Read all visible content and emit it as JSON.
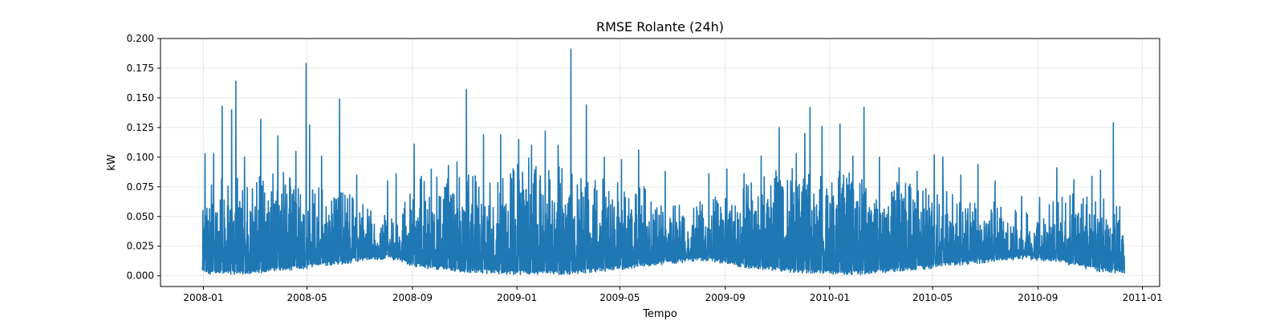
{
  "chart_data": {
    "type": "line",
    "title": "RMSE Rolante (24h)",
    "xlabel": "Tempo",
    "ylabel": "kW",
    "xlim": [
      "2007-11-12",
      "2011-01-21"
    ],
    "ylim": [
      -0.009,
      0.2
    ],
    "grid": true,
    "x_ticks": [
      "2008-01",
      "2008-05",
      "2008-09",
      "2009-01",
      "2009-05",
      "2009-09",
      "2010-01",
      "2010-05",
      "2010-09",
      "2011-01"
    ],
    "y_ticks": [
      "0.000",
      "0.025",
      "0.050",
      "0.075",
      "0.100",
      "0.125",
      "0.150",
      "0.175",
      "0.200"
    ],
    "series": [
      {
        "color": "#1f77b4",
        "x_start": "2007-12-31",
        "x_end": "2010-12-11",
        "envelope": {
          "dates": [
            "2007-12-31",
            "2008-01-15",
            "2008-02-01",
            "2008-02-15",
            "2008-03-01",
            "2008-03-15",
            "2008-04-01",
            "2008-04-15",
            "2008-05-01",
            "2008-05-15",
            "2008-06-01",
            "2008-06-15",
            "2008-07-01",
            "2008-07-15",
            "2008-08-01",
            "2008-08-15",
            "2008-09-01",
            "2008-09-15",
            "2008-10-01",
            "2008-10-15",
            "2008-11-01",
            "2008-11-15",
            "2008-12-01",
            "2008-12-15",
            "2009-01-01",
            "2009-01-15",
            "2009-02-01",
            "2009-02-15",
            "2009-03-01",
            "2009-03-15",
            "2009-04-01",
            "2009-04-15",
            "2009-05-01",
            "2009-05-15",
            "2009-06-01",
            "2009-06-15",
            "2009-07-01",
            "2009-07-15",
            "2009-08-01",
            "2009-08-15",
            "2009-09-01",
            "2009-09-15",
            "2009-10-01",
            "2009-10-15",
            "2009-11-01",
            "2009-11-15",
            "2009-12-01",
            "2009-12-15",
            "2010-01-01",
            "2010-01-15",
            "2010-02-01",
            "2010-02-15",
            "2010-03-01",
            "2010-03-15",
            "2010-04-01",
            "2010-04-15",
            "2010-05-01",
            "2010-05-15",
            "2010-06-01",
            "2010-06-15",
            "2010-07-01",
            "2010-07-15",
            "2010-08-01",
            "2010-08-15",
            "2010-09-01",
            "2010-09-15",
            "2010-10-01",
            "2010-10-15",
            "2010-11-01",
            "2010-11-15",
            "2010-12-11"
          ],
          "min": [
            0.002,
            0.001,
            0.001,
            0.001,
            0.002,
            0.003,
            0.004,
            0.005,
            0.006,
            0.008,
            0.009,
            0.01,
            0.012,
            0.013,
            0.014,
            0.012,
            0.008,
            0.006,
            0.005,
            0.004,
            0.003,
            0.002,
            0.002,
            0.001,
            0.001,
            0.001,
            0.001,
            0.001,
            0.001,
            0.002,
            0.003,
            0.004,
            0.005,
            0.006,
            0.008,
            0.009,
            0.01,
            0.011,
            0.012,
            0.012,
            0.01,
            0.008,
            0.006,
            0.005,
            0.004,
            0.003,
            0.002,
            0.002,
            0.001,
            0.001,
            0.001,
            0.001,
            0.002,
            0.003,
            0.004,
            0.005,
            0.006,
            0.008,
            0.009,
            0.01,
            0.011,
            0.012,
            0.013,
            0.014,
            0.013,
            0.012,
            0.01,
            0.008,
            0.005,
            0.003,
            0.002
          ],
          "typical": [
            0.055,
            0.068,
            0.066,
            0.058,
            0.062,
            0.063,
            0.066,
            0.061,
            0.057,
            0.056,
            0.055,
            0.052,
            0.05,
            0.044,
            0.04,
            0.032,
            0.062,
            0.065,
            0.063,
            0.068,
            0.064,
            0.063,
            0.06,
            0.062,
            0.074,
            0.078,
            0.068,
            0.07,
            0.072,
            0.068,
            0.063,
            0.06,
            0.061,
            0.058,
            0.056,
            0.052,
            0.048,
            0.045,
            0.047,
            0.05,
            0.055,
            0.058,
            0.06,
            0.062,
            0.066,
            0.068,
            0.064,
            0.066,
            0.068,
            0.066,
            0.064,
            0.06,
            0.058,
            0.06,
            0.058,
            0.06,
            0.058,
            0.055,
            0.052,
            0.05,
            0.048,
            0.046,
            0.043,
            0.038,
            0.045,
            0.047,
            0.05,
            0.052,
            0.053,
            0.05,
            0.045
          ]
        },
        "peaks": [
          [
            "2008-01-03",
            0.103
          ],
          [
            "2008-01-13",
            0.103
          ],
          [
            "2008-01-23",
            0.143
          ],
          [
            "2008-02-03",
            0.14
          ],
          [
            "2008-02-08",
            0.164
          ],
          [
            "2008-02-18",
            0.1
          ],
          [
            "2008-03-08",
            0.132
          ],
          [
            "2008-03-28",
            0.118
          ],
          [
            "2008-04-18",
            0.105
          ],
          [
            "2008-04-30",
            0.179
          ],
          [
            "2008-05-04",
            0.127
          ],
          [
            "2008-05-18",
            0.101
          ],
          [
            "2008-06-08",
            0.149
          ],
          [
            "2008-06-28",
            0.085
          ],
          [
            "2008-08-03",
            0.08
          ],
          [
            "2008-08-13",
            0.086
          ],
          [
            "2008-09-03",
            0.111
          ],
          [
            "2008-09-23",
            0.09
          ],
          [
            "2008-10-13",
            0.093
          ],
          [
            "2008-10-23",
            0.096
          ],
          [
            "2008-11-03",
            0.157
          ],
          [
            "2008-11-23",
            0.119
          ],
          [
            "2008-12-13",
            0.119
          ],
          [
            "2009-01-03",
            0.115
          ],
          [
            "2009-01-18",
            0.11
          ],
          [
            "2009-02-03",
            0.122
          ],
          [
            "2009-02-18",
            0.11
          ],
          [
            "2009-03-05",
            0.191
          ],
          [
            "2009-03-23",
            0.144
          ],
          [
            "2009-04-13",
            0.1
          ],
          [
            "2009-05-03",
            0.098
          ],
          [
            "2009-05-23",
            0.106
          ],
          [
            "2009-06-23",
            0.088
          ],
          [
            "2009-08-13",
            0.086
          ],
          [
            "2009-09-03",
            0.09
          ],
          [
            "2009-09-23",
            0.086
          ],
          [
            "2009-10-13",
            0.101
          ],
          [
            "2009-11-03",
            0.125
          ],
          [
            "2009-11-23",
            0.103
          ],
          [
            "2009-12-03",
            0.12
          ],
          [
            "2009-12-09",
            0.142
          ],
          [
            "2009-12-23",
            0.126
          ],
          [
            "2010-01-13",
            0.128
          ],
          [
            "2010-01-28",
            0.101
          ],
          [
            "2010-02-10",
            0.142
          ],
          [
            "2010-02-28",
            0.1
          ],
          [
            "2010-03-23",
            0.091
          ],
          [
            "2010-04-13",
            0.088
          ],
          [
            "2010-05-03",
            0.102
          ],
          [
            "2010-05-13",
            0.1
          ],
          [
            "2010-06-03",
            0.085
          ],
          [
            "2010-06-23",
            0.094
          ],
          [
            "2010-07-13",
            0.08
          ],
          [
            "2010-08-13",
            0.067
          ],
          [
            "2010-09-03",
            0.066
          ],
          [
            "2010-09-23",
            0.091
          ],
          [
            "2010-10-13",
            0.081
          ],
          [
            "2010-11-03",
            0.084
          ],
          [
            "2010-11-13",
            0.089
          ],
          [
            "2010-11-28",
            0.129
          ]
        ]
      }
    ]
  }
}
